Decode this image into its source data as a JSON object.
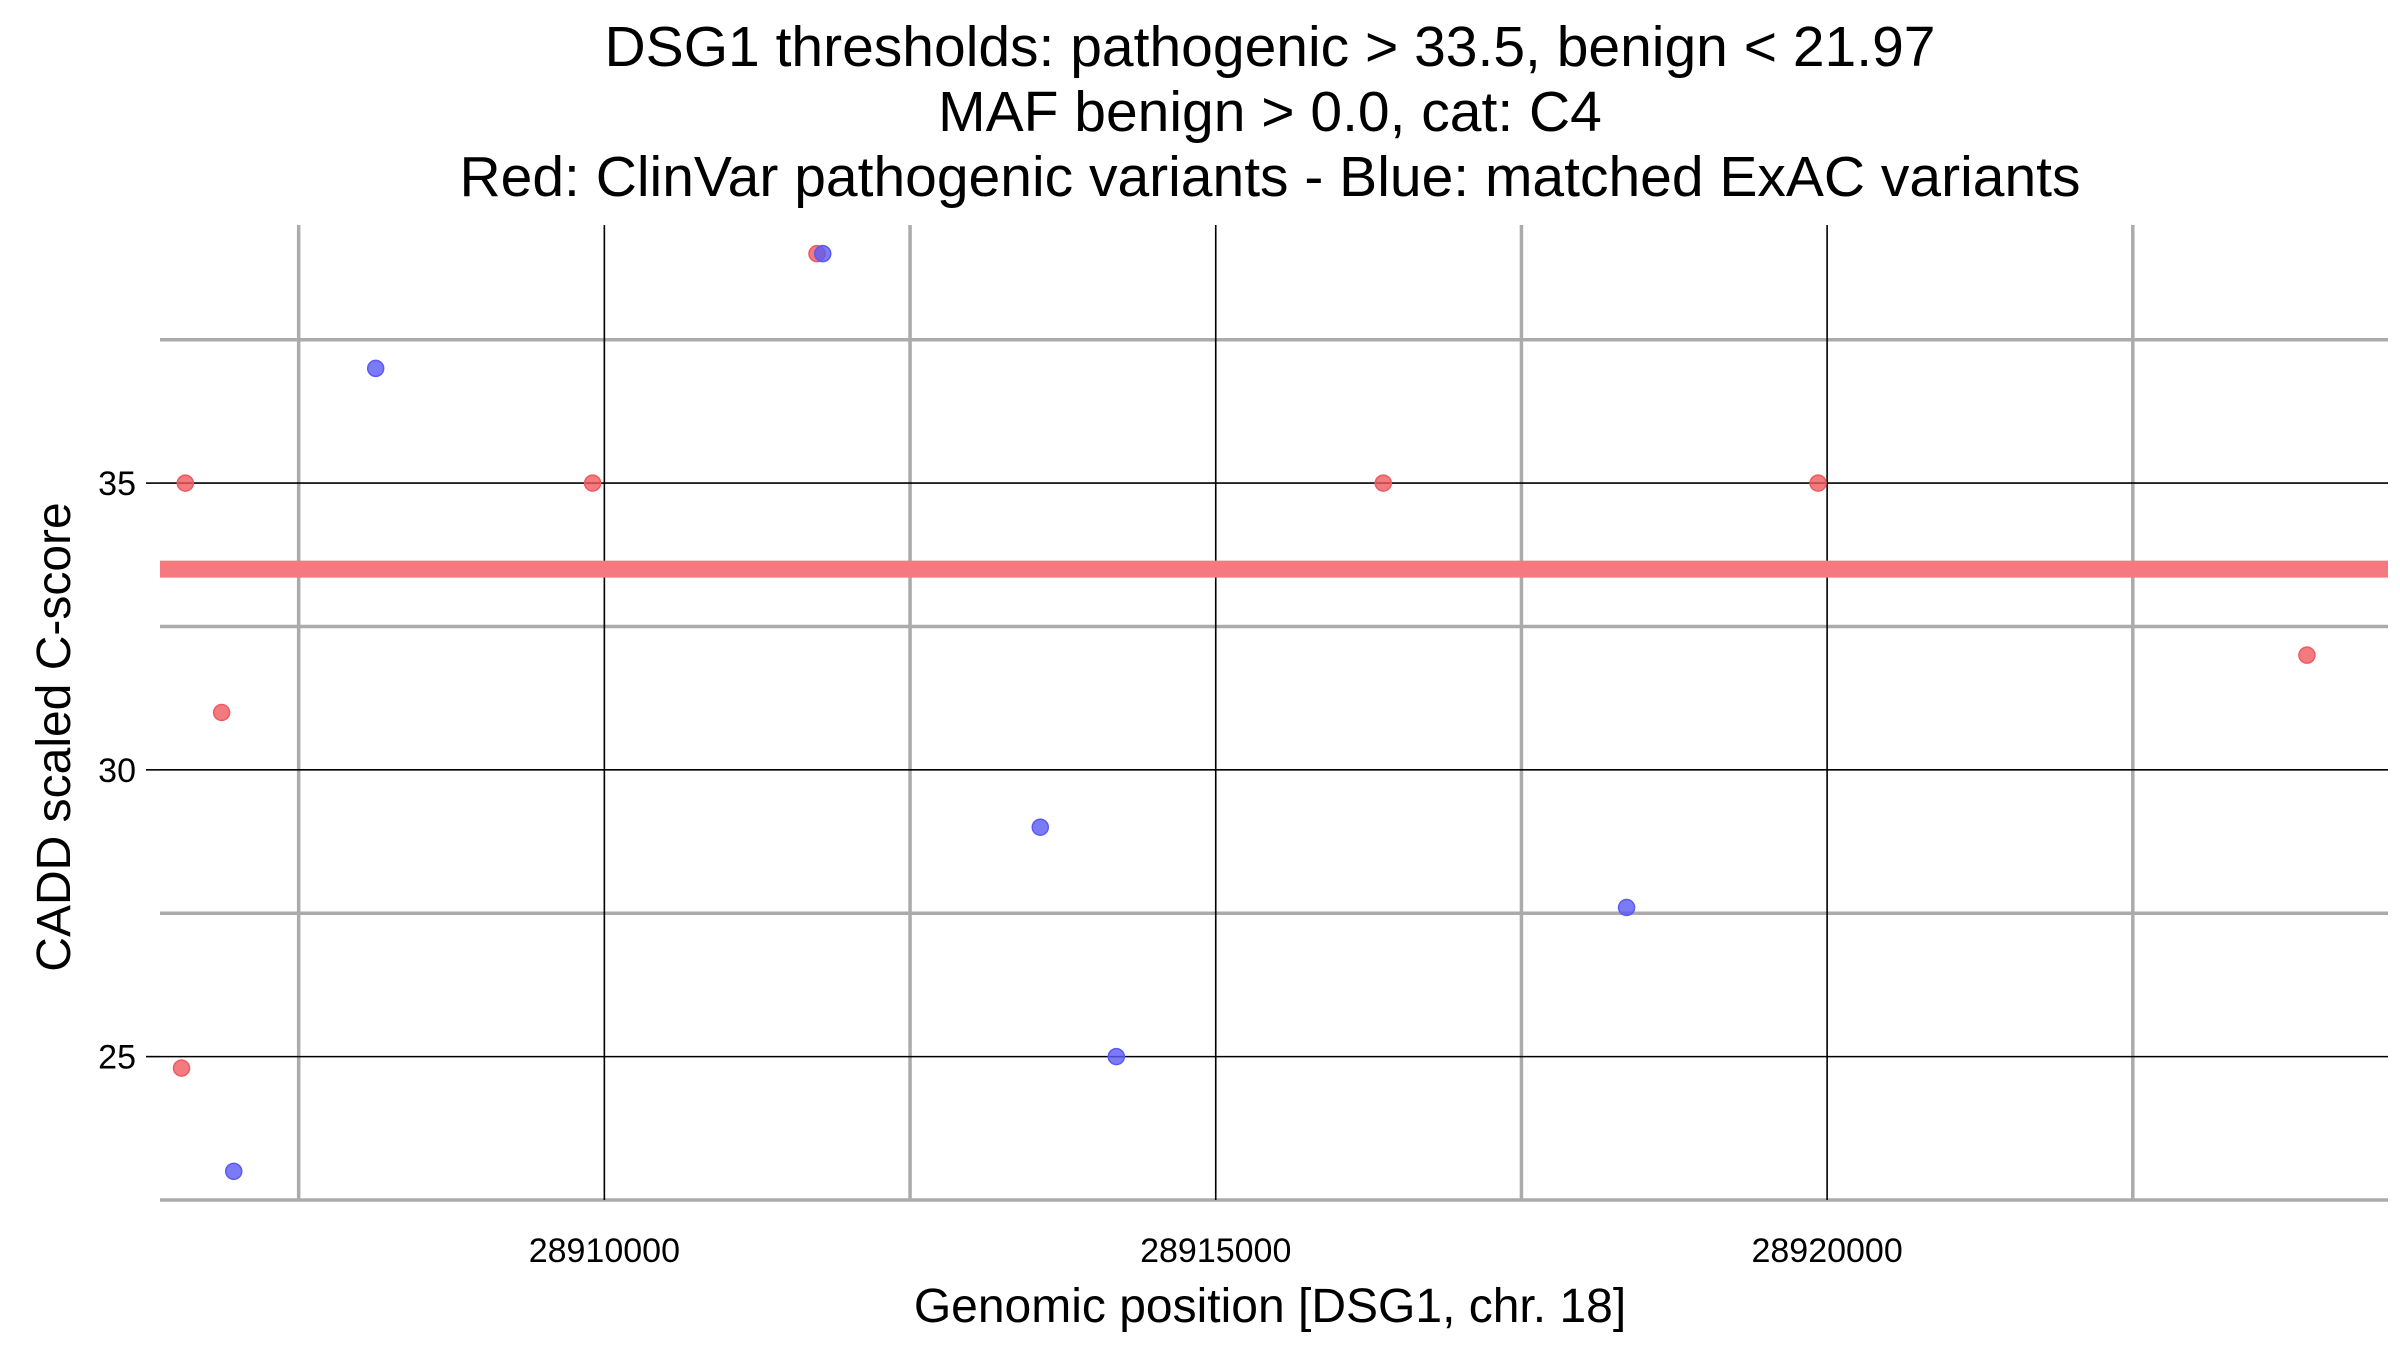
{
  "chart_data": {
    "type": "scatter",
    "title_lines": [
      "DSG1 thresholds: pathogenic > 33.5, benign < 21.97",
      "MAF benign > 0.0, cat: C4",
      "Red: ClinVar pathogenic variants - Blue: matched ExAC variants"
    ],
    "xlabel": "Genomic position [DSG1, chr. 18]",
    "ylabel": "CADD scaled C-score",
    "xlim": [
      28906366,
      28924587
    ],
    "ylim": [
      22.5,
      39.5
    ],
    "xticks": [
      28910000,
      28915000,
      28920000
    ],
    "xtick_labels": [
      "28910000",
      "28915000",
      "28920000"
    ],
    "x_minor_grid": [
      28907500,
      28912500,
      28917500,
      28922500
    ],
    "yticks": [
      25,
      30,
      35
    ],
    "ytick_labels": [
      "25",
      "30",
      "35"
    ],
    "y_minor_grid": [
      22.5,
      27.5,
      32.5,
      37.5
    ],
    "grid": true,
    "thresholds": [
      {
        "value": 33.5,
        "color": "#f47a80"
      }
    ],
    "series": [
      {
        "color": "#f05a5f",
        "points": [
          {
            "x": 28906573,
            "y": 35.0
          },
          {
            "x": 28906870,
            "y": 31.0
          },
          {
            "x": 28906542,
            "y": 24.8
          },
          {
            "x": 28909904,
            "y": 35.0
          },
          {
            "x": 28911739,
            "y": 39.0
          },
          {
            "x": 28916370,
            "y": 35.0
          },
          {
            "x": 28919926,
            "y": 35.0
          },
          {
            "x": 28923924,
            "y": 32.0
          }
        ]
      },
      {
        "color": "#5a5af5",
        "points": [
          {
            "x": 28906969,
            "y": 23.0
          },
          {
            "x": 28908130,
            "y": 37.0
          },
          {
            "x": 28911786,
            "y": 39.0
          },
          {
            "x": 28913565,
            "y": 29.0
          },
          {
            "x": 28914187,
            "y": 25.0
          },
          {
            "x": 28918360,
            "y": 27.6
          }
        ]
      }
    ]
  }
}
